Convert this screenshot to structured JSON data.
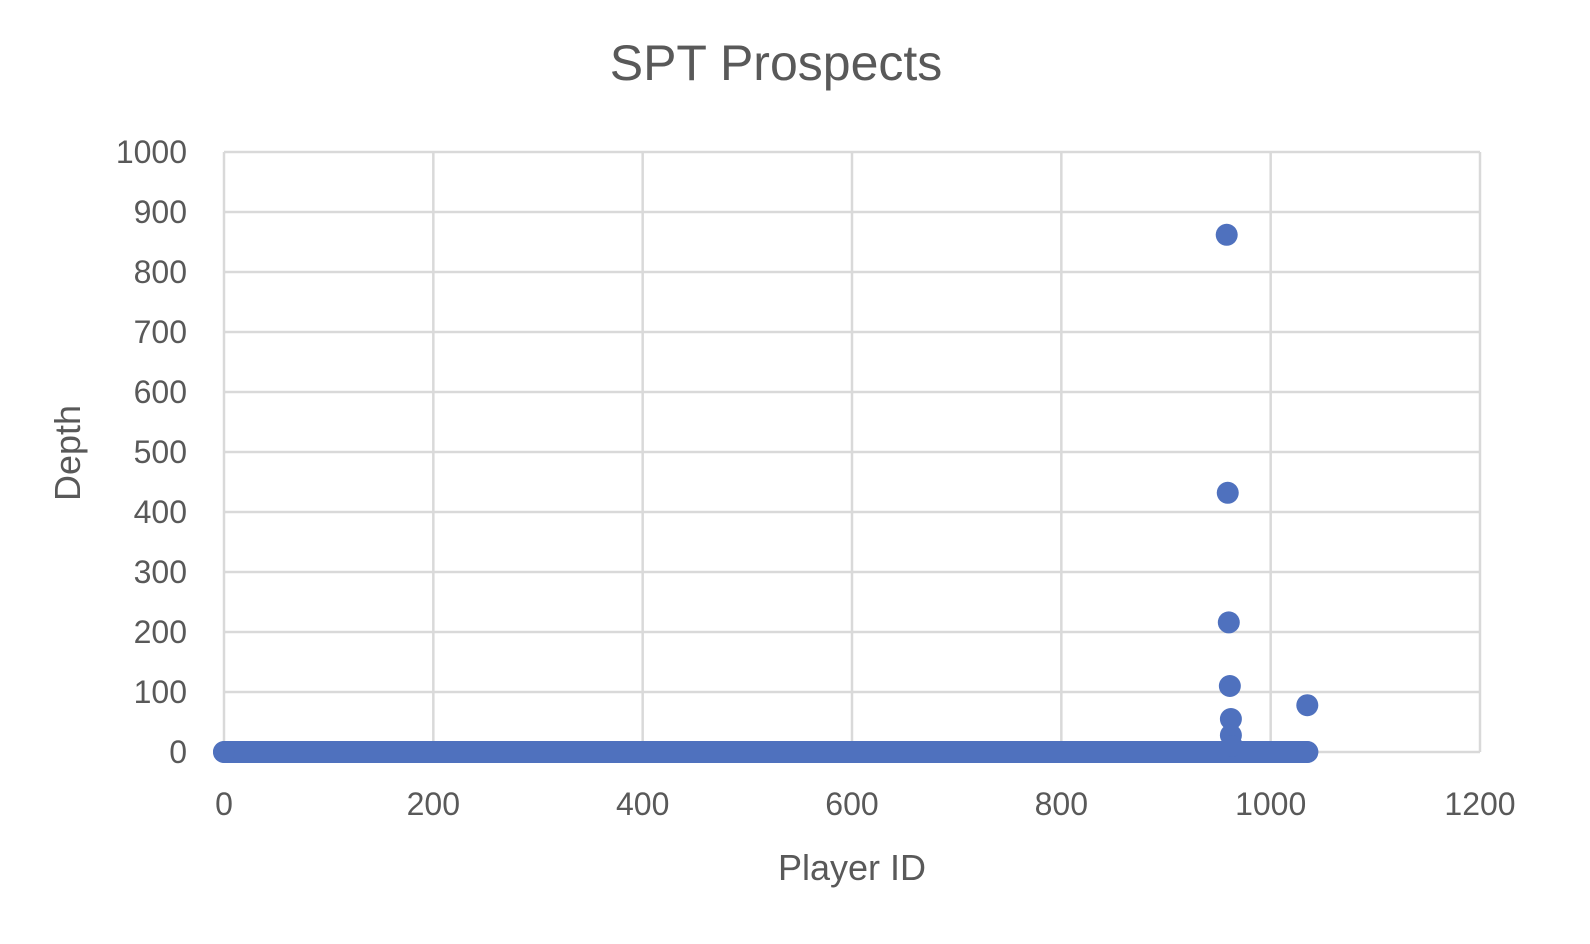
{
  "chart_data": {
    "type": "scatter",
    "title": "SPT Prospects",
    "xlabel": "Player ID",
    "ylabel": "Depth",
    "xlim": [
      0,
      1200
    ],
    "ylim": [
      0,
      1000
    ],
    "xticks": [
      "0",
      "200",
      "400",
      "600",
      "800",
      "1000",
      "1200"
    ],
    "yticks": [
      "0",
      "100",
      "200",
      "300",
      "400",
      "500",
      "600",
      "700",
      "800",
      "900",
      "1000"
    ],
    "grid": true,
    "legend": "none",
    "marker_color": "#4f71be",
    "baseline_band": {
      "x_start": 0,
      "x_end": 1035,
      "y": 0
    },
    "points": [
      {
        "x": 958,
        "y": 862
      },
      {
        "x": 959,
        "y": 432
      },
      {
        "x": 960,
        "y": 216
      },
      {
        "x": 961,
        "y": 110
      },
      {
        "x": 962,
        "y": 55
      },
      {
        "x": 962,
        "y": 28
      },
      {
        "x": 963,
        "y": 10
      },
      {
        "x": 1035,
        "y": 78
      },
      {
        "x": 0,
        "y": 0
      },
      {
        "x": 1035,
        "y": 0
      }
    ]
  }
}
